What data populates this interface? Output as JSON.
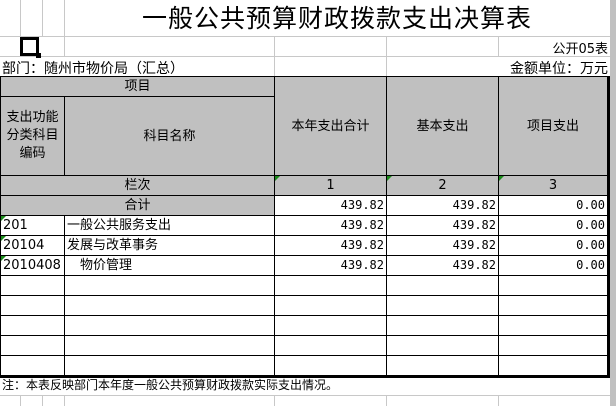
{
  "title": "一般公共预算财政拨款支出决算表",
  "form_no": "公开05表",
  "department": "部门：随州市物价局（汇总）",
  "unit": "金额单位：万元",
  "header": {
    "project": "项目",
    "code": "支出功能分类科目编码",
    "name": "科目名称",
    "col1": "本年支出合计",
    "col2": "基本支出",
    "col3": "项目支出",
    "row_index_label": "栏次",
    "idx1": "1",
    "idx2": "2",
    "idx3": "3"
  },
  "total": {
    "label": "合计",
    "v1": "439.82",
    "v2": "439.82",
    "v3": "0.00"
  },
  "rows": [
    {
      "code": "201",
      "name": "一般公共服务支出",
      "v1": "439.82",
      "v2": "439.82",
      "v3": "0.00"
    },
    {
      "code": "20104",
      "name": "发展与改革事务",
      "v1": "439.82",
      "v2": "439.82",
      "v3": "0.00"
    },
    {
      "code": "2010408",
      "name": "　物价管理",
      "v1": "439.82",
      "v2": "439.82",
      "v3": "0.00"
    }
  ],
  "note": "注：本表反映部门本年度一般公共预算财政拨款实际支出情况。",
  "colors": {
    "header_bg": "#c0c0c0",
    "marker": "#1a8a1a"
  }
}
